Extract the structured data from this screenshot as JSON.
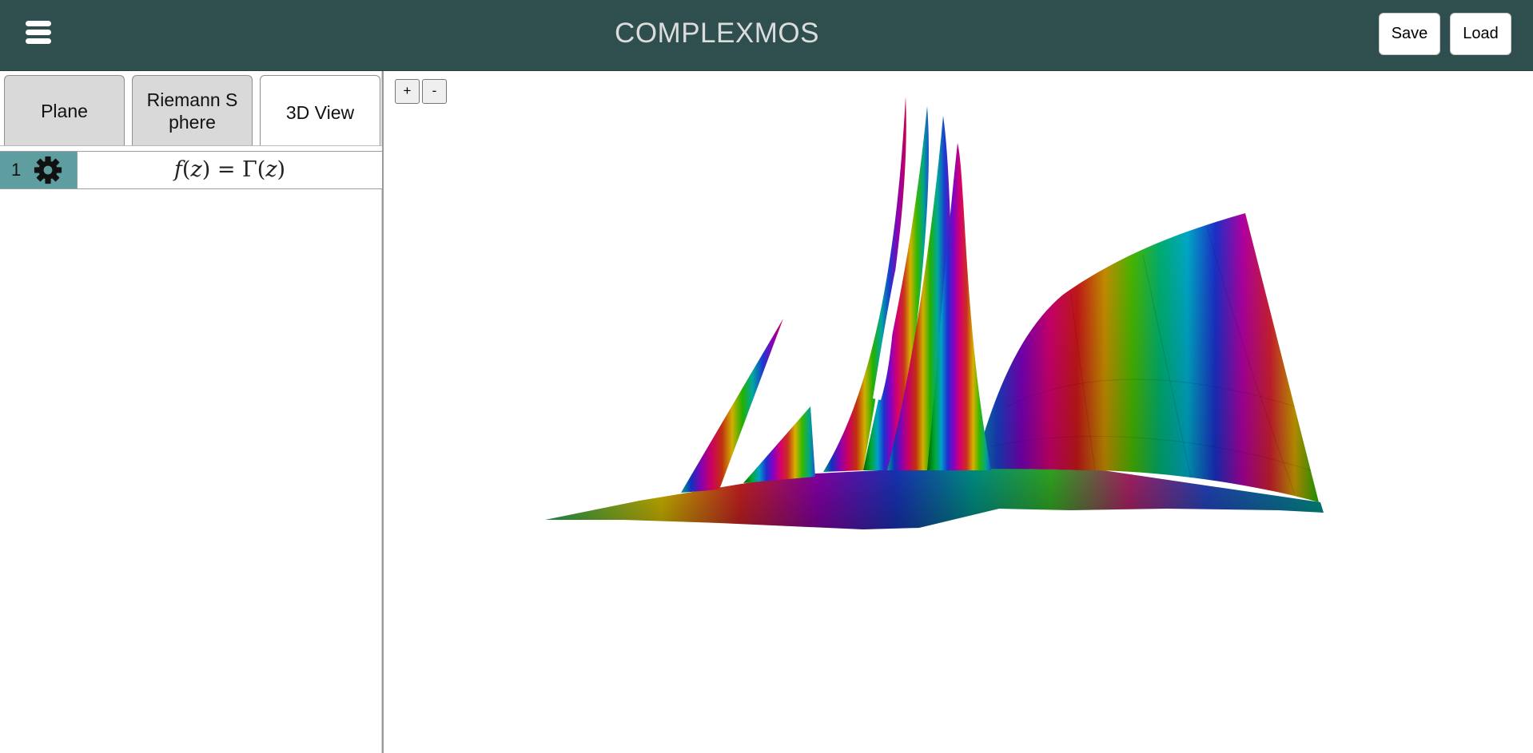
{
  "header": {
    "title": "COMPLEXMOS",
    "menu_icon": "hamburger-menu-icon",
    "save_label": "Save",
    "load_label": "Load",
    "background_color": "#2f4f4f"
  },
  "tabs": [
    {
      "label": "Plane",
      "active": false
    },
    {
      "label": "Riemann Sphere",
      "active": false
    },
    {
      "label": "3D View",
      "active": true
    }
  ],
  "expressions": [
    {
      "index": "1",
      "settings_icon": "gear-icon",
      "formula": {
        "lhs": "f",
        "arg": "z",
        "eq": "=",
        "rhs": "Γ"
      },
      "accent_color": "#5f9ea0"
    }
  ],
  "viewport": {
    "zoom_in_label": "+",
    "zoom_out_label": "-",
    "plot_description_icon": "3d-surface-plot"
  }
}
